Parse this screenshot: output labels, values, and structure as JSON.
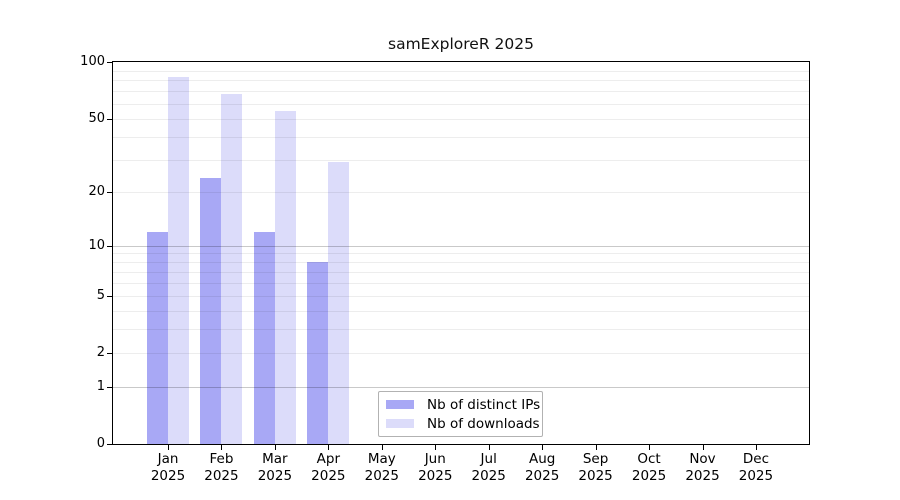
{
  "chart_data": {
    "type": "bar",
    "title": "samExploreR 2025",
    "xlabel": "",
    "ylabel": "",
    "categories": [
      "Jan",
      "Feb",
      "Mar",
      "Apr",
      "May",
      "Jun",
      "Jul",
      "Aug",
      "Sep",
      "Oct",
      "Nov",
      "Dec"
    ],
    "category_sublabel": "2025",
    "series": [
      {
        "name": "Nb of distinct IPs",
        "color": "#a8a8f5",
        "values": [
          12,
          24,
          12,
          8,
          0,
          0,
          0,
          0,
          0,
          0,
          0,
          0
        ]
      },
      {
        "name": "Nb of downloads",
        "color": "#dcdcfa",
        "values": [
          83,
          68,
          55,
          29,
          0,
          0,
          0,
          0,
          0,
          0,
          0,
          0
        ]
      }
    ],
    "yscale": "log10(v+1)",
    "ylim": [
      0,
      100
    ],
    "yticks": [
      0,
      1,
      2,
      5,
      10,
      20,
      50,
      100
    ],
    "ytick_labels": [
      "0",
      "1",
      "2",
      "5",
      "10",
      "20",
      "50",
      "100"
    ],
    "gridlines": {
      "minor": [
        2,
        3,
        4,
        5,
        6,
        7,
        8,
        9,
        20,
        30,
        40,
        50,
        60,
        70,
        80,
        90
      ],
      "major": [
        1,
        10
      ]
    },
    "grid": "horizontal",
    "legend_position": "bottom-center"
  },
  "colors": {
    "background": "#ffffff",
    "frame": "#000000",
    "grid_minor": "#ededed",
    "grid_major": "#c9c9c9",
    "legend_border": "#b2b2b2"
  }
}
